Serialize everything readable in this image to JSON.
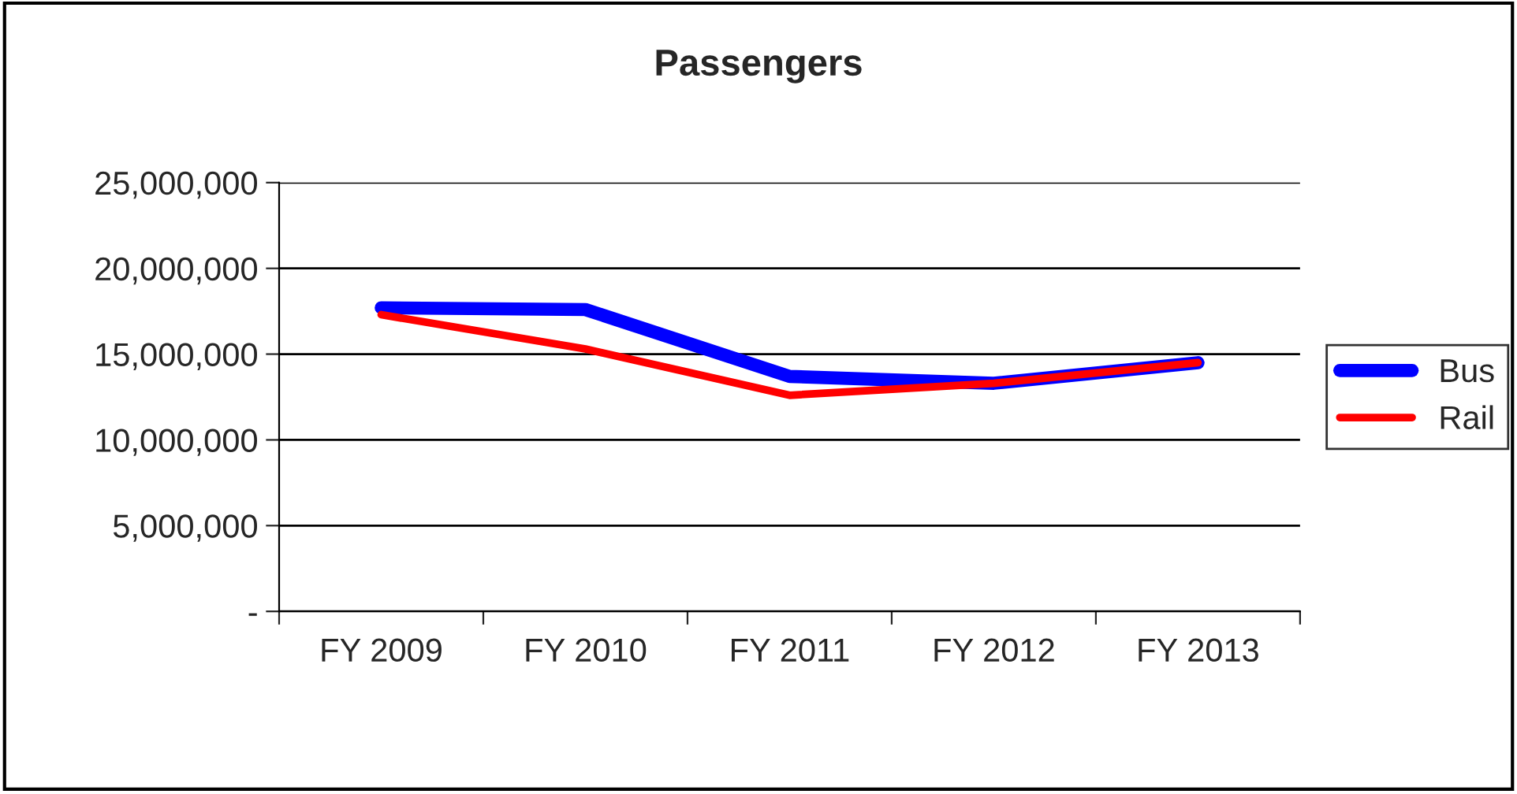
{
  "chart_data": {
    "type": "line",
    "title": "Passengers",
    "categories": [
      "FY 2009",
      "FY 2010",
      "FY 2011",
      "FY 2012",
      "FY 2013"
    ],
    "series": [
      {
        "name": "Bus",
        "color": "#0000ff",
        "values": [
          17700000,
          17600000,
          13700000,
          13300000,
          14500000
        ]
      },
      {
        "name": "Rail",
        "color": "#ff0000",
        "values": [
          17300000,
          15300000,
          12600000,
          13300000,
          14500000
        ]
      }
    ],
    "ylim": [
      0,
      25000000
    ],
    "yticks": [
      {
        "value": 0,
        "label": "-"
      },
      {
        "value": 5000000,
        "label": "5,000,000"
      },
      {
        "value": 10000000,
        "label": "10,000,000"
      },
      {
        "value": 15000000,
        "label": "15,000,000"
      },
      {
        "value": 20000000,
        "label": "20,000,000"
      },
      {
        "value": 25000000,
        "label": "25,000,000"
      }
    ],
    "grid": "y",
    "legend": "right",
    "marker": "none",
    "line_style": "solid"
  }
}
